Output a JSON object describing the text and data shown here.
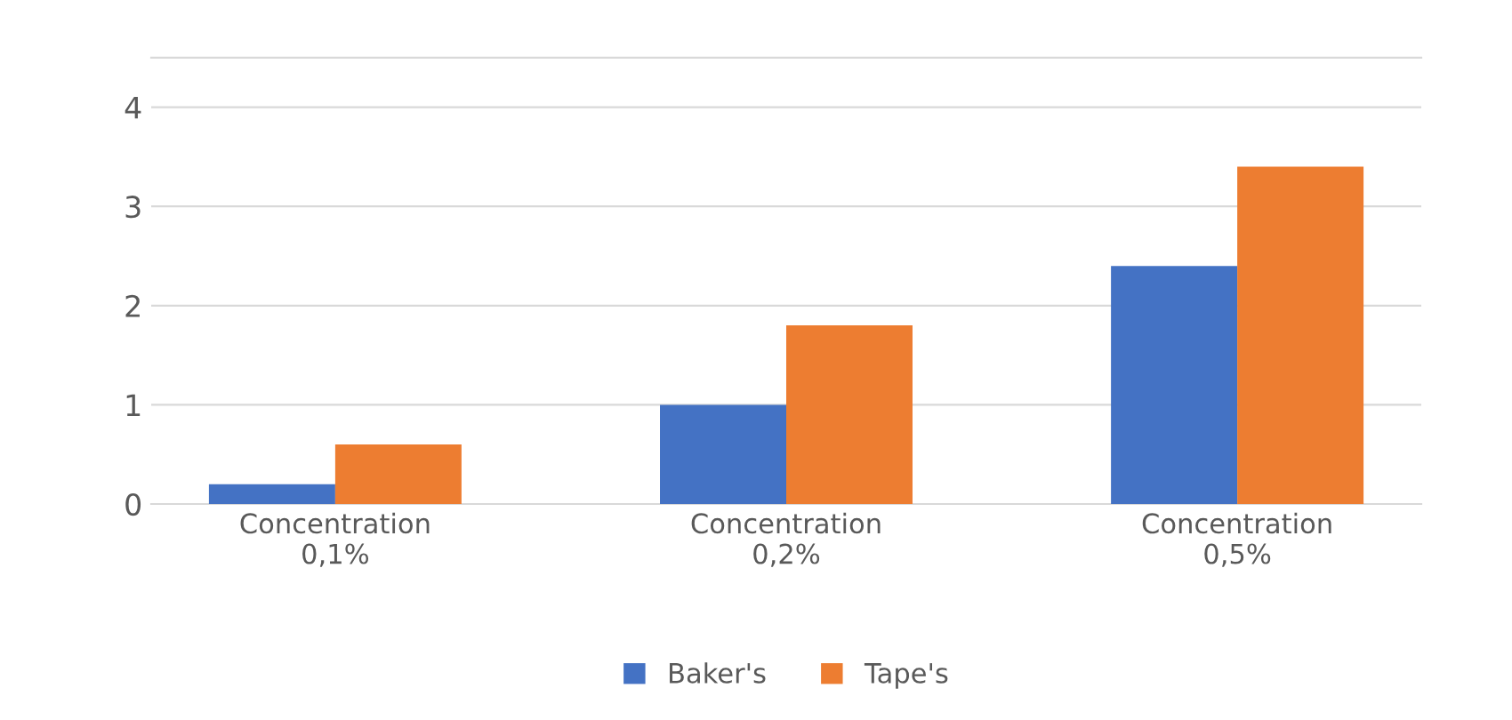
{
  "chart_data": {
    "type": "bar",
    "categories": [
      "Concentration\n0,1%",
      "Concentration\n0,2%",
      "Concentration\n0,5%"
    ],
    "series": [
      {
        "name": "Baker's",
        "color": "#4472c4",
        "values": [
          0.2,
          1.0,
          2.4
        ]
      },
      {
        "name": "Tape's",
        "color": "#ed7d31",
        "values": [
          0.6,
          1.8,
          3.4
        ]
      }
    ],
    "ylim": [
      0,
      4.5
    ],
    "yticks": [
      0,
      1,
      2,
      3,
      4
    ],
    "grid": "y",
    "legend": "bottom"
  }
}
